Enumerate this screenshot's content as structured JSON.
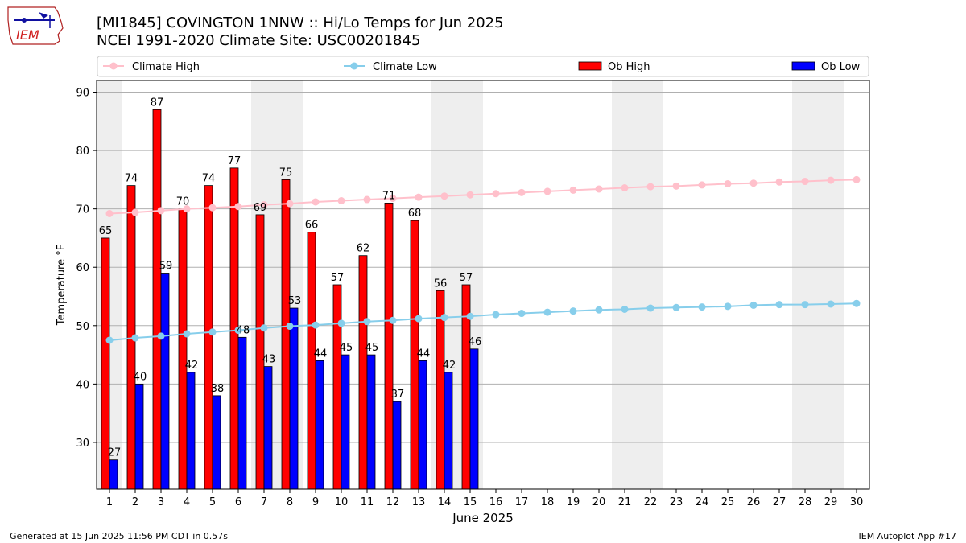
{
  "header": {
    "title_line1": "[MI1845] COVINGTON 1NNW :: Hi/Lo Temps for Jun 2025",
    "title_line2": "NCEI 1991-2020 Climate Site: USC00201845",
    "logo_text": "IEM"
  },
  "footer": {
    "left": "Generated at 15 Jun 2025 11:56 PM CDT in 0.57s",
    "right": "IEM Autoplot App #17"
  },
  "colors": {
    "climate_high": "#ffc0cb",
    "climate_low": "#87ceeb",
    "ob_high": "#ff0000",
    "ob_low": "#0000ff",
    "weekend_shade": "#eeeeee"
  },
  "chart_data": {
    "type": "bar",
    "xlabel": "June 2025",
    "ylabel": "Temperature °F",
    "ylim": [
      22,
      92
    ],
    "xlim": [
      0.5,
      30.5
    ],
    "yticks": [
      30,
      40,
      50,
      60,
      70,
      80,
      90
    ],
    "grid": true,
    "legend_placement": "top",
    "days": [
      1,
      2,
      3,
      4,
      5,
      6,
      7,
      8,
      9,
      10,
      11,
      12,
      13,
      14,
      15,
      16,
      17,
      18,
      19,
      20,
      21,
      22,
      23,
      24,
      25,
      26,
      27,
      28,
      29,
      30
    ],
    "weekend_spans": [
      [
        0.5,
        1.5
      ],
      [
        6.5,
        8.5
      ],
      [
        13.5,
        15.5
      ],
      [
        20.5,
        22.5
      ],
      [
        27.5,
        29.5
      ]
    ],
    "series": [
      {
        "name": "Climate High",
        "kind": "line",
        "values": [
          69.2,
          69.4,
          69.7,
          70.0,
          70.2,
          70.4,
          70.7,
          70.9,
          71.2,
          71.4,
          71.6,
          71.8,
          72.0,
          72.2,
          72.4,
          72.6,
          72.8,
          73.0,
          73.2,
          73.4,
          73.6,
          73.8,
          73.9,
          74.1,
          74.3,
          74.4,
          74.6,
          74.7,
          74.9,
          75.0
        ]
      },
      {
        "name": "Climate Low",
        "kind": "line",
        "values": [
          47.5,
          47.9,
          48.2,
          48.6,
          48.9,
          49.2,
          49.6,
          49.9,
          50.1,
          50.4,
          50.7,
          50.9,
          51.2,
          51.4,
          51.6,
          51.9,
          52.1,
          52.3,
          52.5,
          52.7,
          52.8,
          53.0,
          53.1,
          53.2,
          53.3,
          53.5,
          53.6,
          53.6,
          53.7,
          53.8
        ]
      },
      {
        "name": "Ob High",
        "kind": "bar",
        "values": [
          65,
          74,
          87,
          70,
          74,
          77,
          69,
          75,
          66,
          57,
          62,
          71,
          68,
          56,
          57
        ]
      },
      {
        "name": "Ob Low",
        "kind": "bar",
        "values": [
          27,
          40,
          59,
          42,
          38,
          48,
          43,
          53,
          44,
          45,
          45,
          37,
          44,
          42,
          46
        ]
      }
    ]
  }
}
